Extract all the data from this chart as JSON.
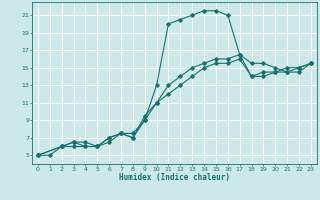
{
  "xlabel": "Humidex (Indice chaleur)",
  "bg_color": "#cce8e8",
  "grid_color": "#ffffff",
  "line_color": "#1a7070",
  "xlim": [
    -0.5,
    23.5
  ],
  "ylim": [
    4,
    22.5
  ],
  "yticks": [
    5,
    7,
    9,
    11,
    13,
    15,
    17,
    19,
    21
  ],
  "xticks": [
    0,
    1,
    2,
    3,
    4,
    5,
    6,
    7,
    8,
    9,
    10,
    11,
    12,
    13,
    14,
    15,
    16,
    17,
    18,
    19,
    20,
    21,
    22,
    23
  ],
  "line1_x": [
    0,
    1,
    2,
    3,
    4,
    5,
    6,
    7,
    8,
    9,
    10,
    11,
    12,
    13,
    14,
    15,
    16,
    17,
    18,
    19,
    20,
    21,
    22,
    23
  ],
  "line1_y": [
    5,
    5,
    6,
    6,
    6,
    6,
    7,
    7.5,
    7.5,
    9,
    13,
    20,
    20.5,
    21,
    21.5,
    21.5,
    21,
    16.5,
    15.5,
    15.5,
    15,
    14.5,
    15,
    15.5
  ],
  "line2_x": [
    0,
    2,
    3,
    4,
    5,
    6,
    7,
    8,
    9,
    10,
    11,
    12,
    13,
    14,
    15,
    16,
    17,
    18,
    19,
    20,
    21,
    22,
    23
  ],
  "line2_y": [
    5,
    6,
    6.5,
    6,
    6,
    6.5,
    7.5,
    7,
    9.5,
    11,
    13,
    14,
    15,
    15.5,
    16,
    16,
    16.5,
    14,
    14.5,
    14.5,
    15,
    15,
    15.5
  ],
  "line3_x": [
    0,
    2,
    3,
    4,
    5,
    6,
    7,
    8,
    9,
    10,
    11,
    12,
    13,
    14,
    15,
    16,
    17,
    18,
    19,
    20,
    21,
    22,
    23
  ],
  "line3_y": [
    5,
    6,
    6.5,
    6.5,
    6,
    7,
    7.5,
    7,
    9,
    11,
    12,
    13,
    14,
    15,
    15.5,
    15.5,
    16,
    14,
    14,
    14.5,
    14.5,
    14.5,
    15.5
  ]
}
